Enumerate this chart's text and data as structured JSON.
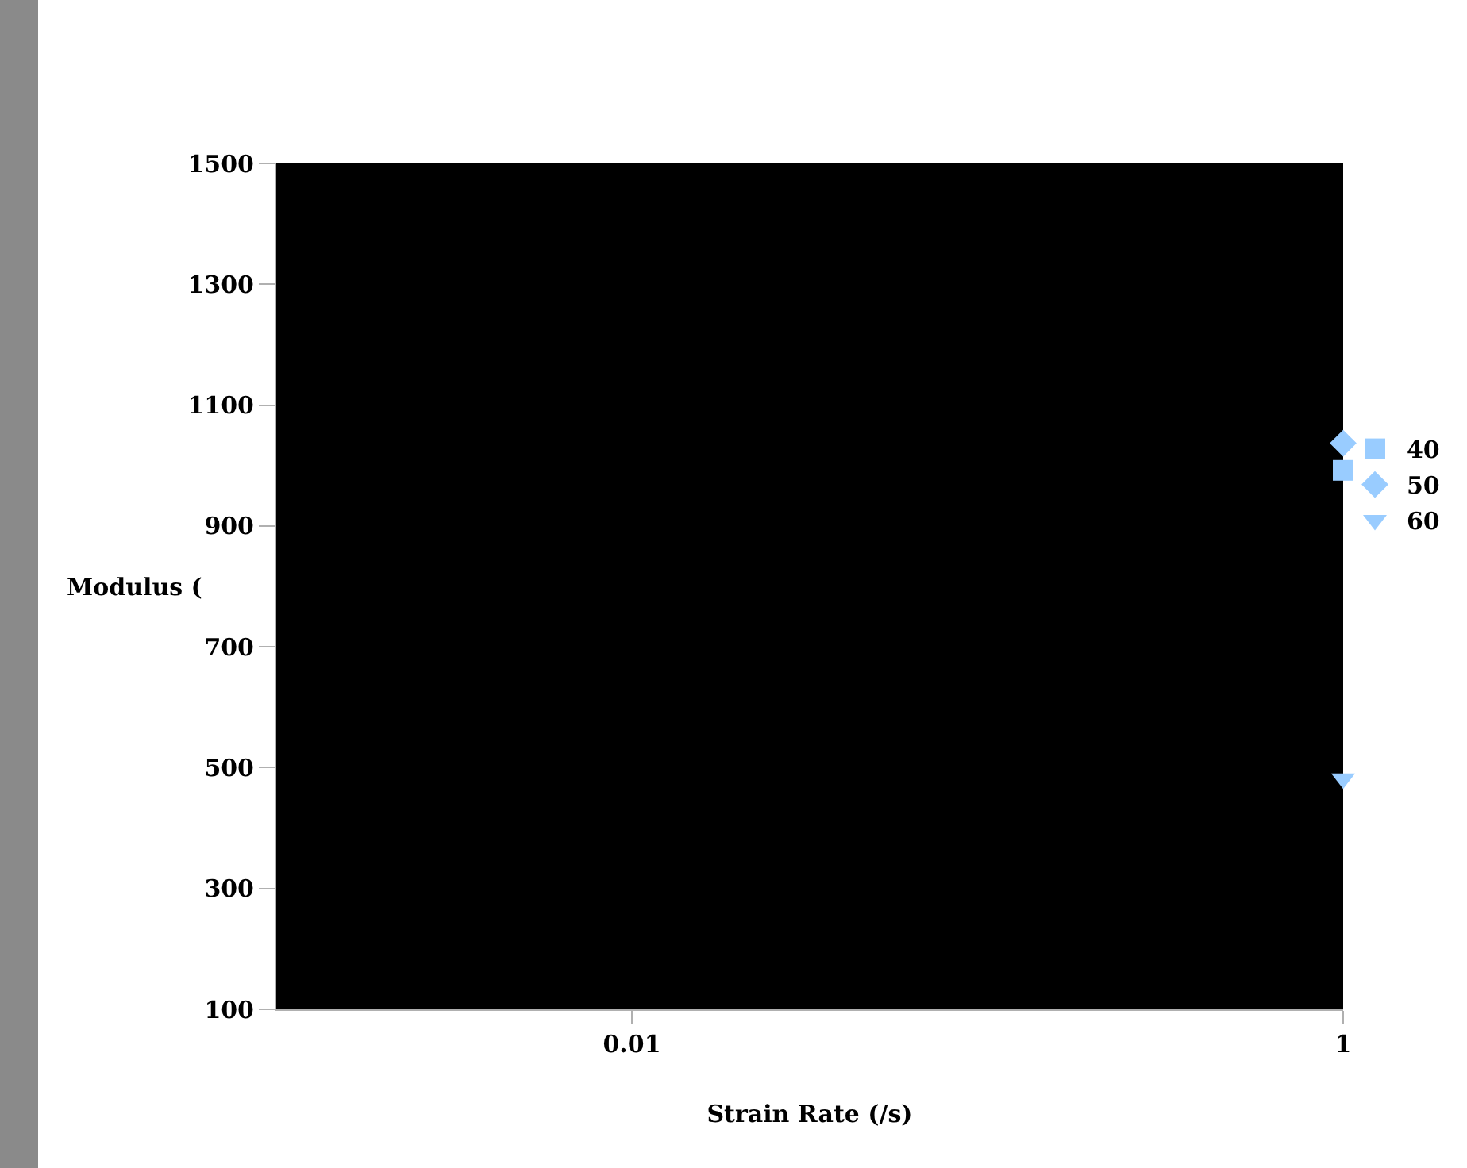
{
  "chart_data": {
    "type": "scatter",
    "xlabel": "Strain Rate (/s)",
    "ylabel": "Modulus (",
    "log": "x",
    "xlim": [
      0.001,
      1
    ],
    "xticks": [
      0.01,
      1
    ],
    "ylim": [
      100,
      1500
    ],
    "yticks": [
      100,
      300,
      500,
      700,
      900,
      1100,
      1300,
      1500
    ],
    "grid": false,
    "legend": "right",
    "x": [
      1
    ],
    "series": [
      {
        "name": "40",
        "color": "#99ccff",
        "marker": "square",
        "values": [
          992
        ]
      },
      {
        "name": "50",
        "color": "#99ccff",
        "marker": "diamond",
        "values": [
          1037
        ]
      },
      {
        "name": "60",
        "color": "#99ccff",
        "marker": "triangle",
        "values": [
          482
        ]
      }
    ]
  }
}
